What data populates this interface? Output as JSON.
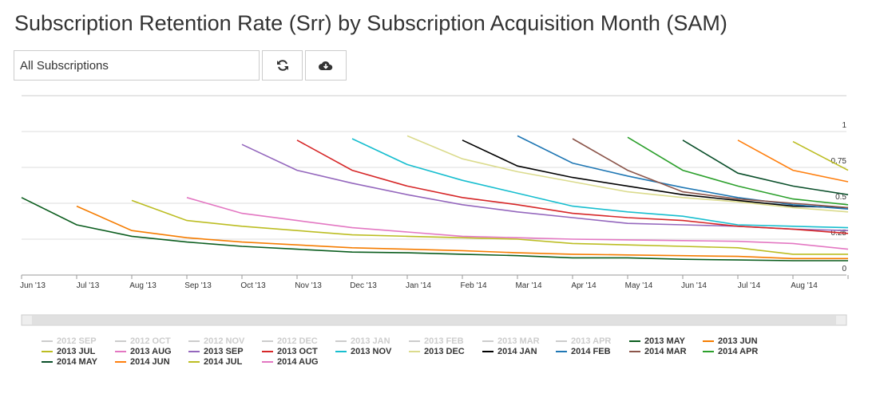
{
  "title": "Subscription Retention Rate (Srr) by Subscription Acquisition Month (SAM)",
  "filter": "All Subscriptions",
  "chart_data": {
    "type": "line",
    "categories": [
      "Jun '13",
      "Jul '13",
      "Aug '13",
      "Sep '13",
      "Oct '13",
      "Nov '13",
      "Dec '13",
      "Jan '14",
      "Feb '14",
      "Mar '14",
      "Apr '14",
      "May '14",
      "Jun '14",
      "Jul '14",
      "Aug '14",
      null
    ],
    "ylim": [
      0,
      1.25
    ],
    "yticks": [
      0,
      0.25,
      0.5,
      0.75,
      1
    ],
    "grid": true,
    "series": [
      {
        "name": "2012 SEP",
        "hidden": true,
        "color": "#cccccc",
        "values": [
          null,
          null,
          null,
          null,
          null,
          null,
          null,
          null,
          null,
          null,
          null,
          null,
          null,
          null,
          null,
          null
        ]
      },
      {
        "name": "2012 OCT",
        "hidden": true,
        "color": "#cccccc",
        "values": [
          null,
          null,
          null,
          null,
          null,
          null,
          null,
          null,
          null,
          null,
          null,
          null,
          null,
          null,
          null,
          null
        ]
      },
      {
        "name": "2012 NOV",
        "hidden": true,
        "color": "#cccccc",
        "values": [
          null,
          null,
          null,
          null,
          null,
          null,
          null,
          null,
          null,
          null,
          null,
          null,
          null,
          null,
          null,
          null
        ]
      },
      {
        "name": "2012 DEC",
        "hidden": true,
        "color": "#cccccc",
        "values": [
          null,
          null,
          null,
          null,
          null,
          null,
          null,
          null,
          null,
          null,
          null,
          null,
          null,
          null,
          null,
          null
        ]
      },
      {
        "name": "2013 JAN",
        "hidden": true,
        "color": "#cccccc",
        "values": [
          null,
          null,
          null,
          null,
          null,
          null,
          null,
          null,
          null,
          null,
          null,
          null,
          null,
          null,
          null,
          null
        ]
      },
      {
        "name": "2013 FEB",
        "hidden": true,
        "color": "#cccccc",
        "values": [
          null,
          null,
          null,
          null,
          null,
          null,
          null,
          null,
          null,
          null,
          null,
          null,
          null,
          null,
          null,
          null
        ]
      },
      {
        "name": "2013 MAR",
        "hidden": true,
        "color": "#cccccc",
        "values": [
          null,
          null,
          null,
          null,
          null,
          null,
          null,
          null,
          null,
          null,
          null,
          null,
          null,
          null,
          null,
          null
        ]
      },
      {
        "name": "2013 APR",
        "hidden": true,
        "color": "#cccccc",
        "values": [
          null,
          null,
          null,
          null,
          null,
          null,
          null,
          null,
          null,
          null,
          null,
          null,
          null,
          null,
          null,
          null
        ]
      },
      {
        "name": "2013 MAY",
        "color": "#0b5d1e",
        "values": [
          0.54,
          0.35,
          0.27,
          0.23,
          0.2,
          0.18,
          0.16,
          0.155,
          0.145,
          0.135,
          0.12,
          0.12,
          0.11,
          0.105,
          0.1,
          0.1
        ]
      },
      {
        "name": "2013 JUN",
        "color": "#f57c00",
        "values": [
          null,
          0.48,
          0.31,
          0.26,
          0.23,
          0.21,
          0.19,
          0.18,
          0.17,
          0.155,
          0.145,
          0.14,
          0.135,
          0.13,
          0.115,
          0.115
        ]
      },
      {
        "name": "2013 JUL",
        "color": "#bcbd22",
        "values": [
          null,
          null,
          0.52,
          0.38,
          0.34,
          0.31,
          0.28,
          0.27,
          0.26,
          0.25,
          0.22,
          0.21,
          0.2,
          0.19,
          0.145,
          0.145
        ]
      },
      {
        "name": "2013 AUG",
        "color": "#e377c2",
        "values": [
          null,
          null,
          null,
          0.54,
          0.43,
          0.38,
          0.33,
          0.3,
          0.27,
          0.26,
          0.25,
          0.245,
          0.24,
          0.235,
          0.22,
          0.18
        ]
      },
      {
        "name": "2013 SEP",
        "color": "#9467bd",
        "values": [
          null,
          null,
          null,
          null,
          0.91,
          0.73,
          0.64,
          0.56,
          0.49,
          0.44,
          0.4,
          0.36,
          0.35,
          0.34,
          0.32,
          0.31
        ]
      },
      {
        "name": "2013 OCT",
        "color": "#d62728",
        "values": [
          null,
          null,
          null,
          null,
          null,
          0.94,
          0.73,
          0.62,
          0.54,
          0.49,
          0.43,
          0.4,
          0.38,
          0.34,
          0.32,
          0.29
        ]
      },
      {
        "name": "2013 NOV",
        "color": "#17becf",
        "values": [
          null,
          null,
          null,
          null,
          null,
          null,
          0.95,
          0.77,
          0.66,
          0.57,
          0.48,
          0.44,
          0.41,
          0.35,
          0.34,
          0.33
        ]
      },
      {
        "name": "2013 DEC",
        "color": "#dbdb8d",
        "values": [
          null,
          null,
          null,
          null,
          null,
          null,
          null,
          0.97,
          0.81,
          0.72,
          0.65,
          0.58,
          0.54,
          0.51,
          0.47,
          0.44
        ]
      },
      {
        "name": "2014 JAN",
        "color": "#000000",
        "values": [
          null,
          null,
          null,
          null,
          null,
          null,
          null,
          null,
          0.94,
          0.76,
          0.68,
          0.62,
          0.56,
          0.52,
          0.48,
          0.47
        ]
      },
      {
        "name": "2014 FEB",
        "color": "#1f77b4",
        "values": [
          null,
          null,
          null,
          null,
          null,
          null,
          null,
          null,
          null,
          0.97,
          0.78,
          0.69,
          0.61,
          0.54,
          0.49,
          0.46
        ]
      },
      {
        "name": "2014 MAR",
        "color": "#8c564b",
        "values": [
          null,
          null,
          null,
          null,
          null,
          null,
          null,
          null,
          null,
          null,
          0.95,
          0.73,
          0.58,
          0.53,
          0.5,
          0.47
        ]
      },
      {
        "name": "2014 APR",
        "color": "#2ca02c",
        "values": [
          null,
          null,
          null,
          null,
          null,
          null,
          null,
          null,
          null,
          null,
          null,
          0.96,
          0.73,
          0.62,
          0.53,
          0.49
        ]
      },
      {
        "name": "2014 MAY",
        "color": "#0a4f2a",
        "values": [
          null,
          null,
          null,
          null,
          null,
          null,
          null,
          null,
          null,
          null,
          null,
          null,
          0.94,
          0.71,
          0.62,
          0.56
        ]
      },
      {
        "name": "2014 JUN",
        "color": "#ff7f0e",
        "values": [
          null,
          null,
          null,
          null,
          null,
          null,
          null,
          null,
          null,
          null,
          null,
          null,
          null,
          0.94,
          0.73,
          0.65
        ]
      },
      {
        "name": "2014 JUL",
        "color": "#bcbd22",
        "values": [
          null,
          null,
          null,
          null,
          null,
          null,
          null,
          null,
          null,
          null,
          null,
          null,
          null,
          null,
          0.93,
          0.73
        ]
      },
      {
        "name": "2014 AUG",
        "color": "#e377c2",
        "values": [
          null,
          null,
          null,
          null,
          null,
          null,
          null,
          null,
          null,
          null,
          null,
          null,
          null,
          null,
          null,
          null
        ]
      }
    ]
  }
}
